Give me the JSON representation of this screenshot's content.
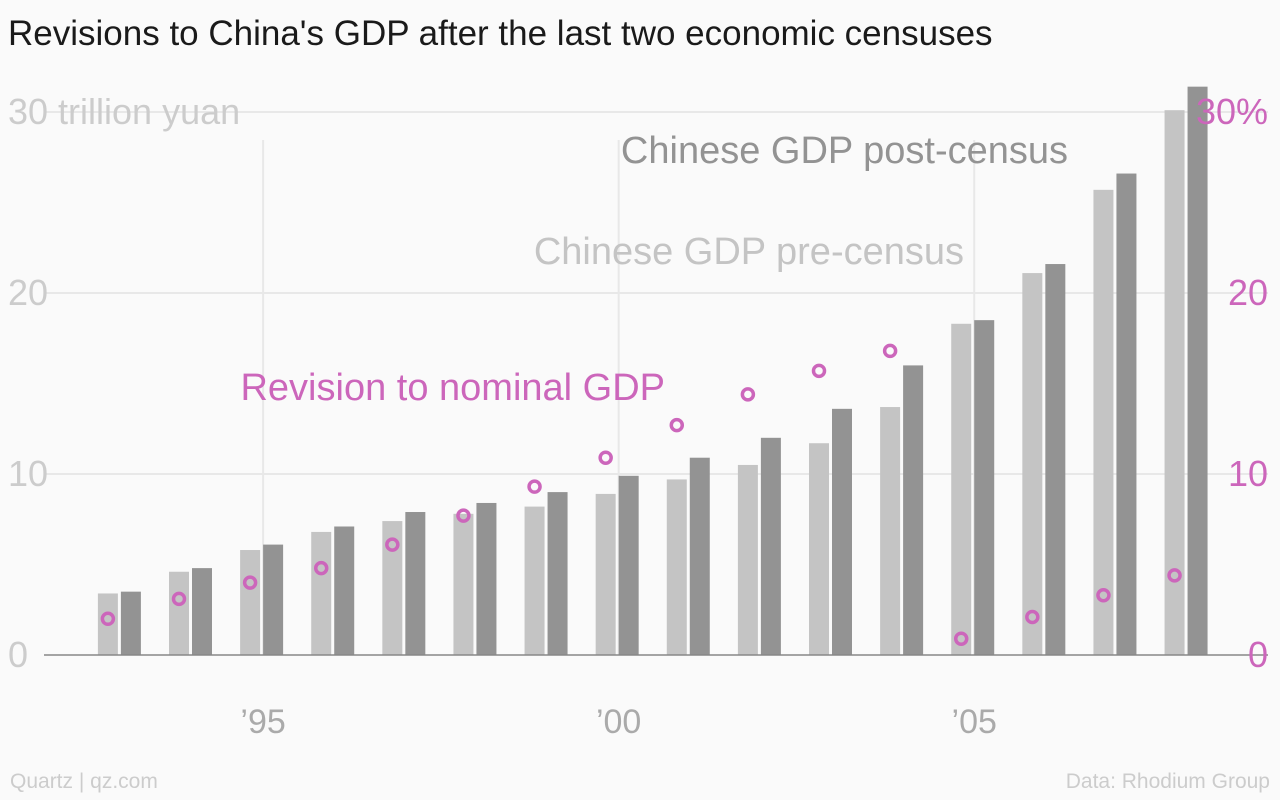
{
  "title": "Revisions to China's GDP after the last two economic censuses",
  "footer": {
    "source_left": "Quartz | qz.com",
    "source_right": "Data: Rhodium Group"
  },
  "colors": {
    "pre": "#c4c4c4",
    "post": "#939393",
    "revision": "#cc66bb",
    "left_axis_text": "#cccccc",
    "grid": "#e8e8e8",
    "axis_line": "#888888"
  },
  "chart_data": {
    "type": "bar",
    "years": [
      1993,
      1994,
      1995,
      1996,
      1997,
      1998,
      1999,
      2000,
      2001,
      2002,
      2003,
      2004,
      2005,
      2006,
      2007,
      2008
    ],
    "xticks": [
      {
        "year": 1995,
        "label": "’95"
      },
      {
        "year": 2000,
        "label": "’00"
      },
      {
        "year": 2005,
        "label": "’05"
      }
    ],
    "xlim": [
      1991.3,
      2009.3
    ],
    "series": [
      {
        "name": "Chinese GDP pre-census",
        "axis": "left",
        "values": [
          3.4,
          4.6,
          5.8,
          6.8,
          7.4,
          7.8,
          8.2,
          8.9,
          9.7,
          10.5,
          11.7,
          13.7,
          18.3,
          21.1,
          25.7,
          30.1
        ]
      },
      {
        "name": "Chinese GDP post-census",
        "axis": "left",
        "values": [
          3.5,
          4.8,
          6.1,
          7.1,
          7.9,
          8.4,
          9.0,
          9.9,
          10.9,
          12.0,
          13.6,
          16.0,
          18.5,
          21.6,
          26.6,
          31.4
        ]
      },
      {
        "name": "Revision to nominal GDP",
        "axis": "right",
        "type": "scatter",
        "values": [
          2.0,
          3.1,
          4.0,
          4.8,
          6.1,
          7.7,
          9.3,
          10.9,
          12.7,
          14.4,
          15.7,
          16.8,
          0.9,
          2.1,
          3.3,
          4.4
        ]
      }
    ],
    "left_axis": {
      "ticks": [
        0,
        10,
        20,
        30
      ],
      "tick_labels": [
        "0",
        "10",
        "20",
        "30 trillion yuan"
      ],
      "ylim": [
        0,
        33
      ]
    },
    "right_axis": {
      "ticks": [
        0,
        10,
        20,
        30
      ],
      "tick_labels": [
        "0",
        "10",
        "20",
        "30%"
      ],
      "ylim": [
        0,
        33
      ]
    },
    "annotations": [
      {
        "text": "Chinese GDP post-census",
        "series": "post"
      },
      {
        "text": "Chinese GDP pre-census",
        "series": "pre"
      },
      {
        "text": "Revision to nominal GDP",
        "series": "revision"
      }
    ],
    "grid": true
  }
}
